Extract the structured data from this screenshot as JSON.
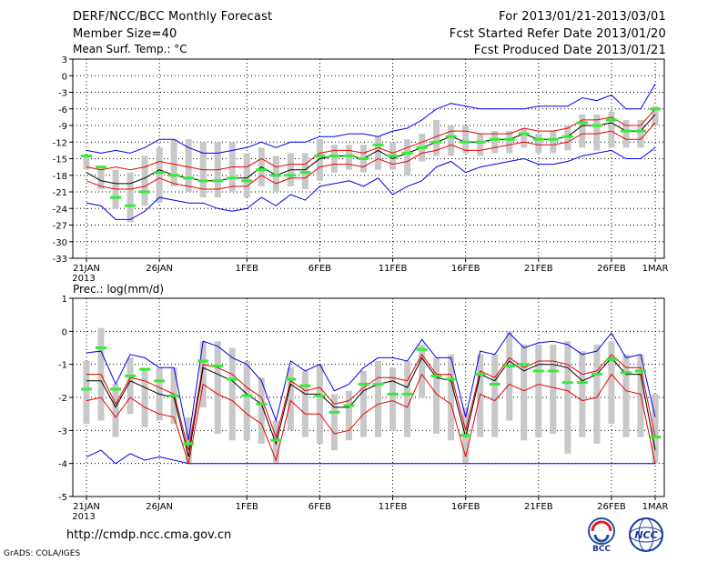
{
  "header": {
    "title": "DERF/NCC/BCC Monthly Forecast",
    "member_size": "Member Size=40",
    "period": "For 2013/01/21-2013/03/01",
    "start_ref": "Fcst Started Refer Date 2013/01/20",
    "produced": "Fcst Produced Date 2013/01/21"
  },
  "footer": {
    "url": "http://cmdp.ncc.cma.gov.cn",
    "grads": "GrADS: COLA/IGES",
    "logo_left": "BCC",
    "logo_right": "NCC"
  },
  "colors": {
    "envelope": "#0000ee",
    "spread": "#ee0000",
    "mean": "#000000",
    "obs": "#33ee33",
    "bar": "#c8c8c8",
    "grid": "#000000"
  },
  "chart_data": [
    {
      "type": "line",
      "title": "Mean Surf. Temp.: °C",
      "x": [
        "21JAN",
        "22JAN",
        "23JAN",
        "24JAN",
        "25JAN",
        "26JAN",
        "27JAN",
        "28JAN",
        "29JAN",
        "30JAN",
        "31JAN",
        "1FEB",
        "2FEB",
        "3FEB",
        "4FEB",
        "5FEB",
        "6FEB",
        "7FEB",
        "8FEB",
        "9FEB",
        "10FEB",
        "11FEB",
        "12FEB",
        "13FEB",
        "14FEB",
        "15FEB",
        "16FEB",
        "17FEB",
        "18FEB",
        "19FEB",
        "20FEB",
        "21FEB",
        "22FEB",
        "23FEB",
        "24FEB",
        "25FEB",
        "26FEB",
        "27FEB",
        "28FEB",
        "1MAR"
      ],
      "xtick_labels": [
        "21JAN",
        "26JAN",
        "1FEB",
        "6FEB",
        "11FEB",
        "16FEB",
        "21FEB",
        "26FEB",
        "1MAR"
      ],
      "xtick_index": [
        0,
        5,
        11,
        16,
        21,
        26,
        31,
        36,
        39
      ],
      "year_label": "2013",
      "ylim": [
        -33,
        3
      ],
      "yticks": [
        3,
        0,
        -3,
        -6,
        -9,
        -12,
        -15,
        -18,
        -21,
        -24,
        -27,
        -30,
        -33
      ],
      "series": [
        {
          "name": "max",
          "values": [
            -13.5,
            -14,
            -13.5,
            -14,
            -13,
            -11.5,
            -11.5,
            -13,
            -14,
            -14,
            -13.5,
            -13,
            -12,
            -13,
            -12,
            -12,
            -11,
            -11,
            -10.5,
            -10.5,
            -11,
            -10,
            -9.5,
            -8,
            -6,
            -5,
            -5.5,
            -6,
            -6,
            -6,
            -6,
            -5.5,
            -5.5,
            -5.5,
            -4,
            -4.5,
            -3.5,
            -6,
            -6,
            -1.5
          ]
        },
        {
          "name": "upper",
          "values": [
            -16.5,
            -17,
            -16.5,
            -17,
            -16.5,
            -15.5,
            -16,
            -16.5,
            -17,
            -17,
            -16.5,
            -16.5,
            -15,
            -16.5,
            -16,
            -16,
            -14,
            -13.5,
            -13.5,
            -14,
            -13,
            -14,
            -13,
            -12,
            -11,
            -10,
            -10,
            -10.5,
            -10.5,
            -10.5,
            -9.5,
            -10,
            -10,
            -9.5,
            -8,
            -8,
            -7.5,
            -9,
            -9,
            -6
          ]
        },
        {
          "name": "mean",
          "values": [
            -17.5,
            -19,
            -19.5,
            -19.5,
            -18.5,
            -17,
            -18,
            -18.5,
            -19,
            -19,
            -18.5,
            -18.5,
            -16.5,
            -18,
            -17,
            -17,
            -15,
            -14.5,
            -14.5,
            -15,
            -13.5,
            -15,
            -14,
            -13,
            -12,
            -11,
            -12,
            -12,
            -11.5,
            -11.5,
            -10.5,
            -11.5,
            -11.5,
            -11,
            -9,
            -9,
            -8.5,
            -10,
            -10,
            -7
          ]
        },
        {
          "name": "lower",
          "values": [
            -19,
            -20,
            -20.5,
            -20.5,
            -20,
            -18.5,
            -19.5,
            -20,
            -20.5,
            -20.5,
            -20,
            -20,
            -18,
            -19.5,
            -18.5,
            -18.5,
            -16.5,
            -16,
            -16,
            -16.5,
            -15,
            -16,
            -15.5,
            -14,
            -13.5,
            -12.5,
            -13.5,
            -13.5,
            -13,
            -12.5,
            -12,
            -12.5,
            -12.5,
            -12,
            -10.5,
            -10.5,
            -10,
            -11.5,
            -11.5,
            -8.5
          ]
        },
        {
          "name": "min",
          "values": [
            -23,
            -23.5,
            -26,
            -26,
            -24.5,
            -22,
            -22.5,
            -23,
            -23,
            -24,
            -24.5,
            -24,
            -22,
            -23.5,
            -21.5,
            -22.5,
            -20,
            -19.5,
            -19,
            -20,
            -18.5,
            -21.5,
            -20,
            -19,
            -16.5,
            -15.5,
            -17.5,
            -16.5,
            -16,
            -15.5,
            -15,
            -16,
            -16,
            -15.5,
            -14.5,
            -14,
            -13.5,
            -15,
            -15,
            -13
          ]
        }
      ],
      "boxes": {
        "lo": [
          -17,
          -20.5,
          -24,
          -26.5,
          -23.5,
          -23,
          -20,
          -21,
          -22,
          -22,
          -21,
          -22,
          -20,
          -21,
          -20,
          -20.5,
          -19,
          -17.5,
          -17,
          -17.5,
          -17,
          -17,
          -18,
          -15.5,
          -14.5,
          -14.5,
          -14,
          -14.5,
          -14,
          -14,
          -13,
          -14,
          -14,
          -13.5,
          -13,
          -13.5,
          -13,
          -13,
          -13,
          -9
        ],
        "hi": [
          -14.5,
          -16.5,
          -17,
          -17.5,
          -14.5,
          -13,
          -11.5,
          -11.5,
          -12,
          -12,
          -12,
          -14,
          -13,
          -14.5,
          -14,
          -14,
          -11.5,
          -12.5,
          -12.5,
          -12.5,
          -11,
          -12,
          -11.5,
          -10.5,
          -8,
          -9,
          -9,
          -10.5,
          -10,
          -10,
          -9.5,
          -10.5,
          -10,
          -9,
          -7,
          -7,
          -6.5,
          -8,
          -8,
          -5.5
        ]
      },
      "obs": [
        -14.5,
        -16.5,
        -22,
        -23.5,
        -21,
        -17.5,
        -18,
        -18.5,
        -19,
        -19,
        -18.5,
        -19,
        -17,
        -18,
        -18,
        -17.5,
        -14.5,
        -14.5,
        -14.5,
        -15,
        -12.5,
        -14.5,
        -14,
        -13,
        -12,
        -11,
        -12,
        -12,
        -11.5,
        -11.5,
        -10.5,
        -11.5,
        -11.5,
        -11,
        -8.5,
        -9,
        -8,
        -10,
        -10,
        -6
      ]
    },
    {
      "type": "line",
      "title": "Prec.: log(mm/d)",
      "x": [
        "21JAN",
        "22JAN",
        "23JAN",
        "24JAN",
        "25JAN",
        "26JAN",
        "27JAN",
        "28JAN",
        "29JAN",
        "30JAN",
        "31JAN",
        "1FEB",
        "2FEB",
        "3FEB",
        "4FEB",
        "5FEB",
        "6FEB",
        "7FEB",
        "8FEB",
        "9FEB",
        "10FEB",
        "11FEB",
        "12FEB",
        "13FEB",
        "14FEB",
        "15FEB",
        "16FEB",
        "17FEB",
        "18FEB",
        "19FEB",
        "20FEB",
        "21FEB",
        "22FEB",
        "23FEB",
        "24FEB",
        "25FEB",
        "26FEB",
        "27FEB",
        "28FEB",
        "1MAR"
      ],
      "xtick_labels": [
        "21JAN",
        "26JAN",
        "1FEB",
        "6FEB",
        "11FEB",
        "16FEB",
        "21FEB",
        "26FEB",
        "1MAR"
      ],
      "xtick_index": [
        0,
        5,
        11,
        16,
        21,
        26,
        31,
        36,
        39
      ],
      "year_label": "2013",
      "ylim": [
        -5,
        1
      ],
      "yticks": [
        1,
        0,
        -1,
        -2,
        -3,
        -4,
        -5
      ],
      "series": [
        {
          "name": "max",
          "values": [
            -0.65,
            -0.6,
            -1.6,
            -0.7,
            -0.8,
            -1.1,
            -1.1,
            -3.3,
            -0.3,
            -0.45,
            -0.8,
            -1.0,
            -1.5,
            -2.7,
            -0.9,
            -1.2,
            -1.0,
            -1.8,
            -1.6,
            -1.1,
            -0.8,
            -0.8,
            -0.9,
            -0.25,
            -0.8,
            -0.8,
            -2.6,
            -0.6,
            -0.7,
            -0.05,
            -0.5,
            -0.35,
            -0.3,
            -0.4,
            -0.7,
            -0.6,
            -0.05,
            -0.8,
            -0.7,
            -2.6
          ]
        },
        {
          "name": "upper",
          "values": [
            -1.3,
            -1.3,
            -2.2,
            -1.4,
            -1.5,
            -1.7,
            -1.9,
            -3.6,
            -1.0,
            -1.1,
            -1.3,
            -1.7,
            -2.0,
            -3.2,
            -1.5,
            -1.8,
            -1.7,
            -2.2,
            -2.1,
            -1.7,
            -1.4,
            -1.4,
            -1.5,
            -0.7,
            -1.3,
            -1.3,
            -3.0,
            -1.2,
            -1.4,
            -0.8,
            -1.1,
            -0.9,
            -0.9,
            -1.0,
            -1.3,
            -1.2,
            -0.7,
            -1.1,
            -1.1,
            -3.2
          ]
        },
        {
          "name": "mean",
          "values": [
            -1.5,
            -1.5,
            -2.3,
            -1.5,
            -1.7,
            -1.9,
            -2.0,
            -3.8,
            -1.1,
            -1.3,
            -1.5,
            -1.9,
            -2.2,
            -3.4,
            -1.6,
            -1.9,
            -1.9,
            -2.3,
            -2.3,
            -1.8,
            -1.6,
            -1.5,
            -1.7,
            -0.8,
            -1.4,
            -1.5,
            -3.2,
            -1.3,
            -1.5,
            -0.9,
            -1.2,
            -1.0,
            -1.0,
            -1.1,
            -1.5,
            -1.3,
            -0.8,
            -1.3,
            -1.3,
            -3.6
          ]
        },
        {
          "name": "lower",
          "values": [
            -2.1,
            -2.0,
            -2.6,
            -2.0,
            -2.3,
            -2.5,
            -2.6,
            -4.0,
            -1.6,
            -1.9,
            -2.1,
            -2.5,
            -2.8,
            -3.9,
            -2.1,
            -2.5,
            -2.5,
            -3.1,
            -3.0,
            -2.5,
            -2.2,
            -2.1,
            -2.3,
            -1.3,
            -1.9,
            -2.2,
            -3.8,
            -1.9,
            -2.1,
            -1.6,
            -1.8,
            -1.6,
            -1.7,
            -1.8,
            -2.1,
            -2.0,
            -1.3,
            -1.8,
            -1.9,
            -4.0
          ]
        },
        {
          "name": "min",
          "values": [
            -3.8,
            -3.6,
            -4.0,
            -3.7,
            -3.9,
            -3.8,
            -3.9,
            -4.0,
            -4.0,
            -4.0,
            -4.0,
            -4.0,
            -4.0,
            -4.0,
            -4.0,
            -4.0,
            -4.0,
            -4.0,
            -4.0,
            -4.0,
            -4.0,
            -4.0,
            -4.0,
            -4.0,
            -4.0,
            -4.0,
            -4.0,
            -4.0,
            -4.0,
            -4.0,
            -4.0,
            -4.0,
            -4.0,
            -4.0,
            -4.0,
            -4.0,
            -4.0,
            -4.0,
            -4.0,
            -4.0
          ]
        }
      ],
      "boxes": {
        "lo": [
          -2.8,
          -2.7,
          -3.2,
          -2.5,
          -2.9,
          -2.7,
          -2.8,
          -4.0,
          -2.3,
          -3.1,
          -3.3,
          -3.3,
          -3.4,
          -4.0,
          -3.0,
          -3.2,
          -3.4,
          -3.6,
          -3.3,
          -3.2,
          -3.2,
          -3.0,
          -3.2,
          -2.0,
          -3.1,
          -3.3,
          -4.0,
          -3.2,
          -3.2,
          -2.7,
          -3.3,
          -3.2,
          -3.1,
          -3.7,
          -3.2,
          -3.4,
          -2.8,
          -3.2,
          -3.2,
          -4.0
        ],
        "hi": [
          -0.9,
          0.1,
          -1.6,
          -0.8,
          -1.1,
          -1.1,
          -1.1,
          -2.6,
          -0.3,
          -0.3,
          -0.5,
          -0.9,
          -1.4,
          -2.7,
          -1.1,
          -1.2,
          -1.0,
          -1.9,
          -1.8,
          -1.2,
          -0.9,
          -1.1,
          -0.9,
          -0.4,
          -0.8,
          -0.7,
          -2.3,
          -0.7,
          -0.7,
          0.0,
          -0.4,
          -0.4,
          -0.4,
          -0.3,
          -0.6,
          -0.4,
          -0.3,
          -0.7,
          -0.7,
          -1.9
        ]
      },
      "obs": [
        -1.75,
        -0.5,
        -1.75,
        -1.35,
        -1.15,
        -1.5,
        -1.95,
        -3.4,
        -0.9,
        -1.05,
        -1.45,
        -1.95,
        -2.2,
        -3.3,
        -1.45,
        -1.65,
        -1.95,
        -2.45,
        -2.25,
        -1.6,
        -1.6,
        -1.9,
        -1.9,
        -0.55,
        -1.35,
        -1.45,
        -3.15,
        -1.3,
        -1.6,
        -1.05,
        -1.0,
        -1.2,
        -1.2,
        -1.55,
        -1.55,
        -1.3,
        -0.85,
        -1.25,
        -1.2,
        -3.2
      ]
    }
  ]
}
